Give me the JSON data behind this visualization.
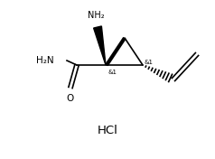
{
  "bg_color": "#ffffff",
  "line_color": "#000000",
  "font_color": "#000000",
  "hcl_text": "HCl",
  "nh2_top": "NH₂",
  "h2n_amide": "H₂N",
  "amide_o": "O",
  "stereo_label": "&1",
  "figsize": [
    2.38,
    1.76
  ],
  "dpi": 100
}
